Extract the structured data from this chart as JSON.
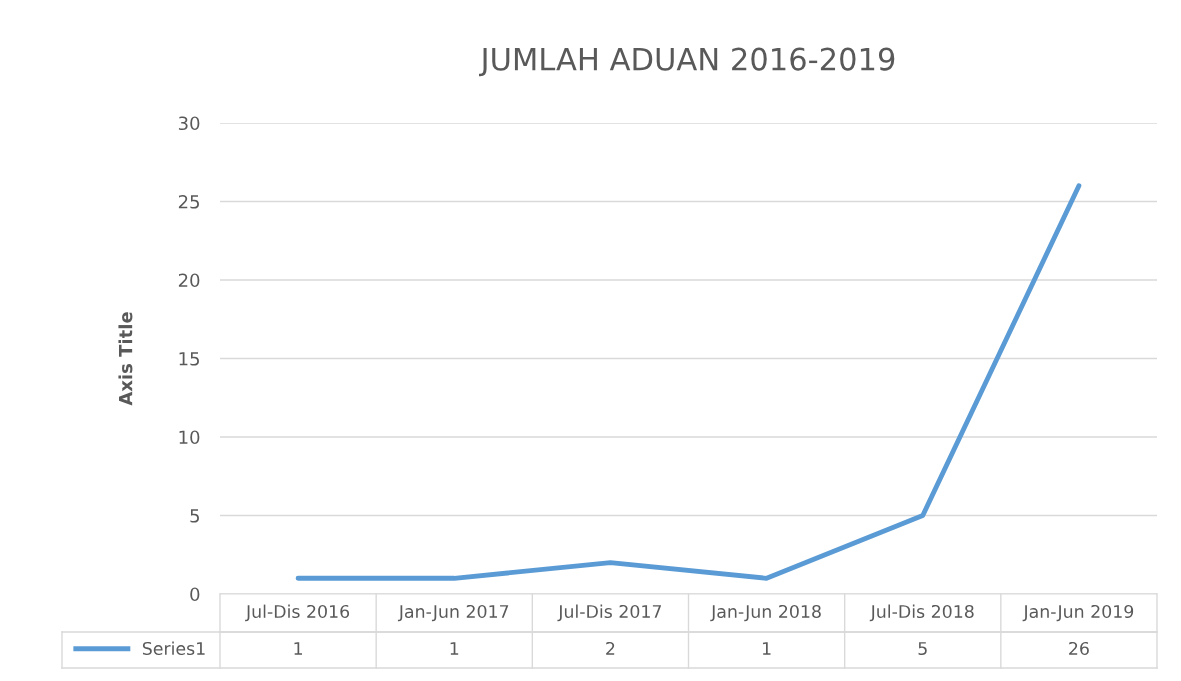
{
  "chart_data": {
    "type": "line",
    "title": "JUMLAH ADUAN 2016-2019",
    "ylabel": "Axis Title",
    "categories": [
      "Jul-Dis 2016",
      "Jan-Jun 2017",
      "Jul-Dis 2017",
      "Jan-Jun 2018",
      "Jul-Dis 2018",
      "Jan-Jun 2019"
    ],
    "series": [
      {
        "name": "Series1",
        "color": "#5b9bd5",
        "values": [
          1,
          1,
          2,
          1,
          5,
          26
        ]
      }
    ],
    "ylim": [
      0,
      30
    ],
    "yticks": [
      0,
      5,
      10,
      15,
      20,
      25,
      30
    ],
    "grid": "y",
    "legend": "bottom",
    "data_labels": true,
    "marker": "none",
    "line_style": "solid"
  }
}
